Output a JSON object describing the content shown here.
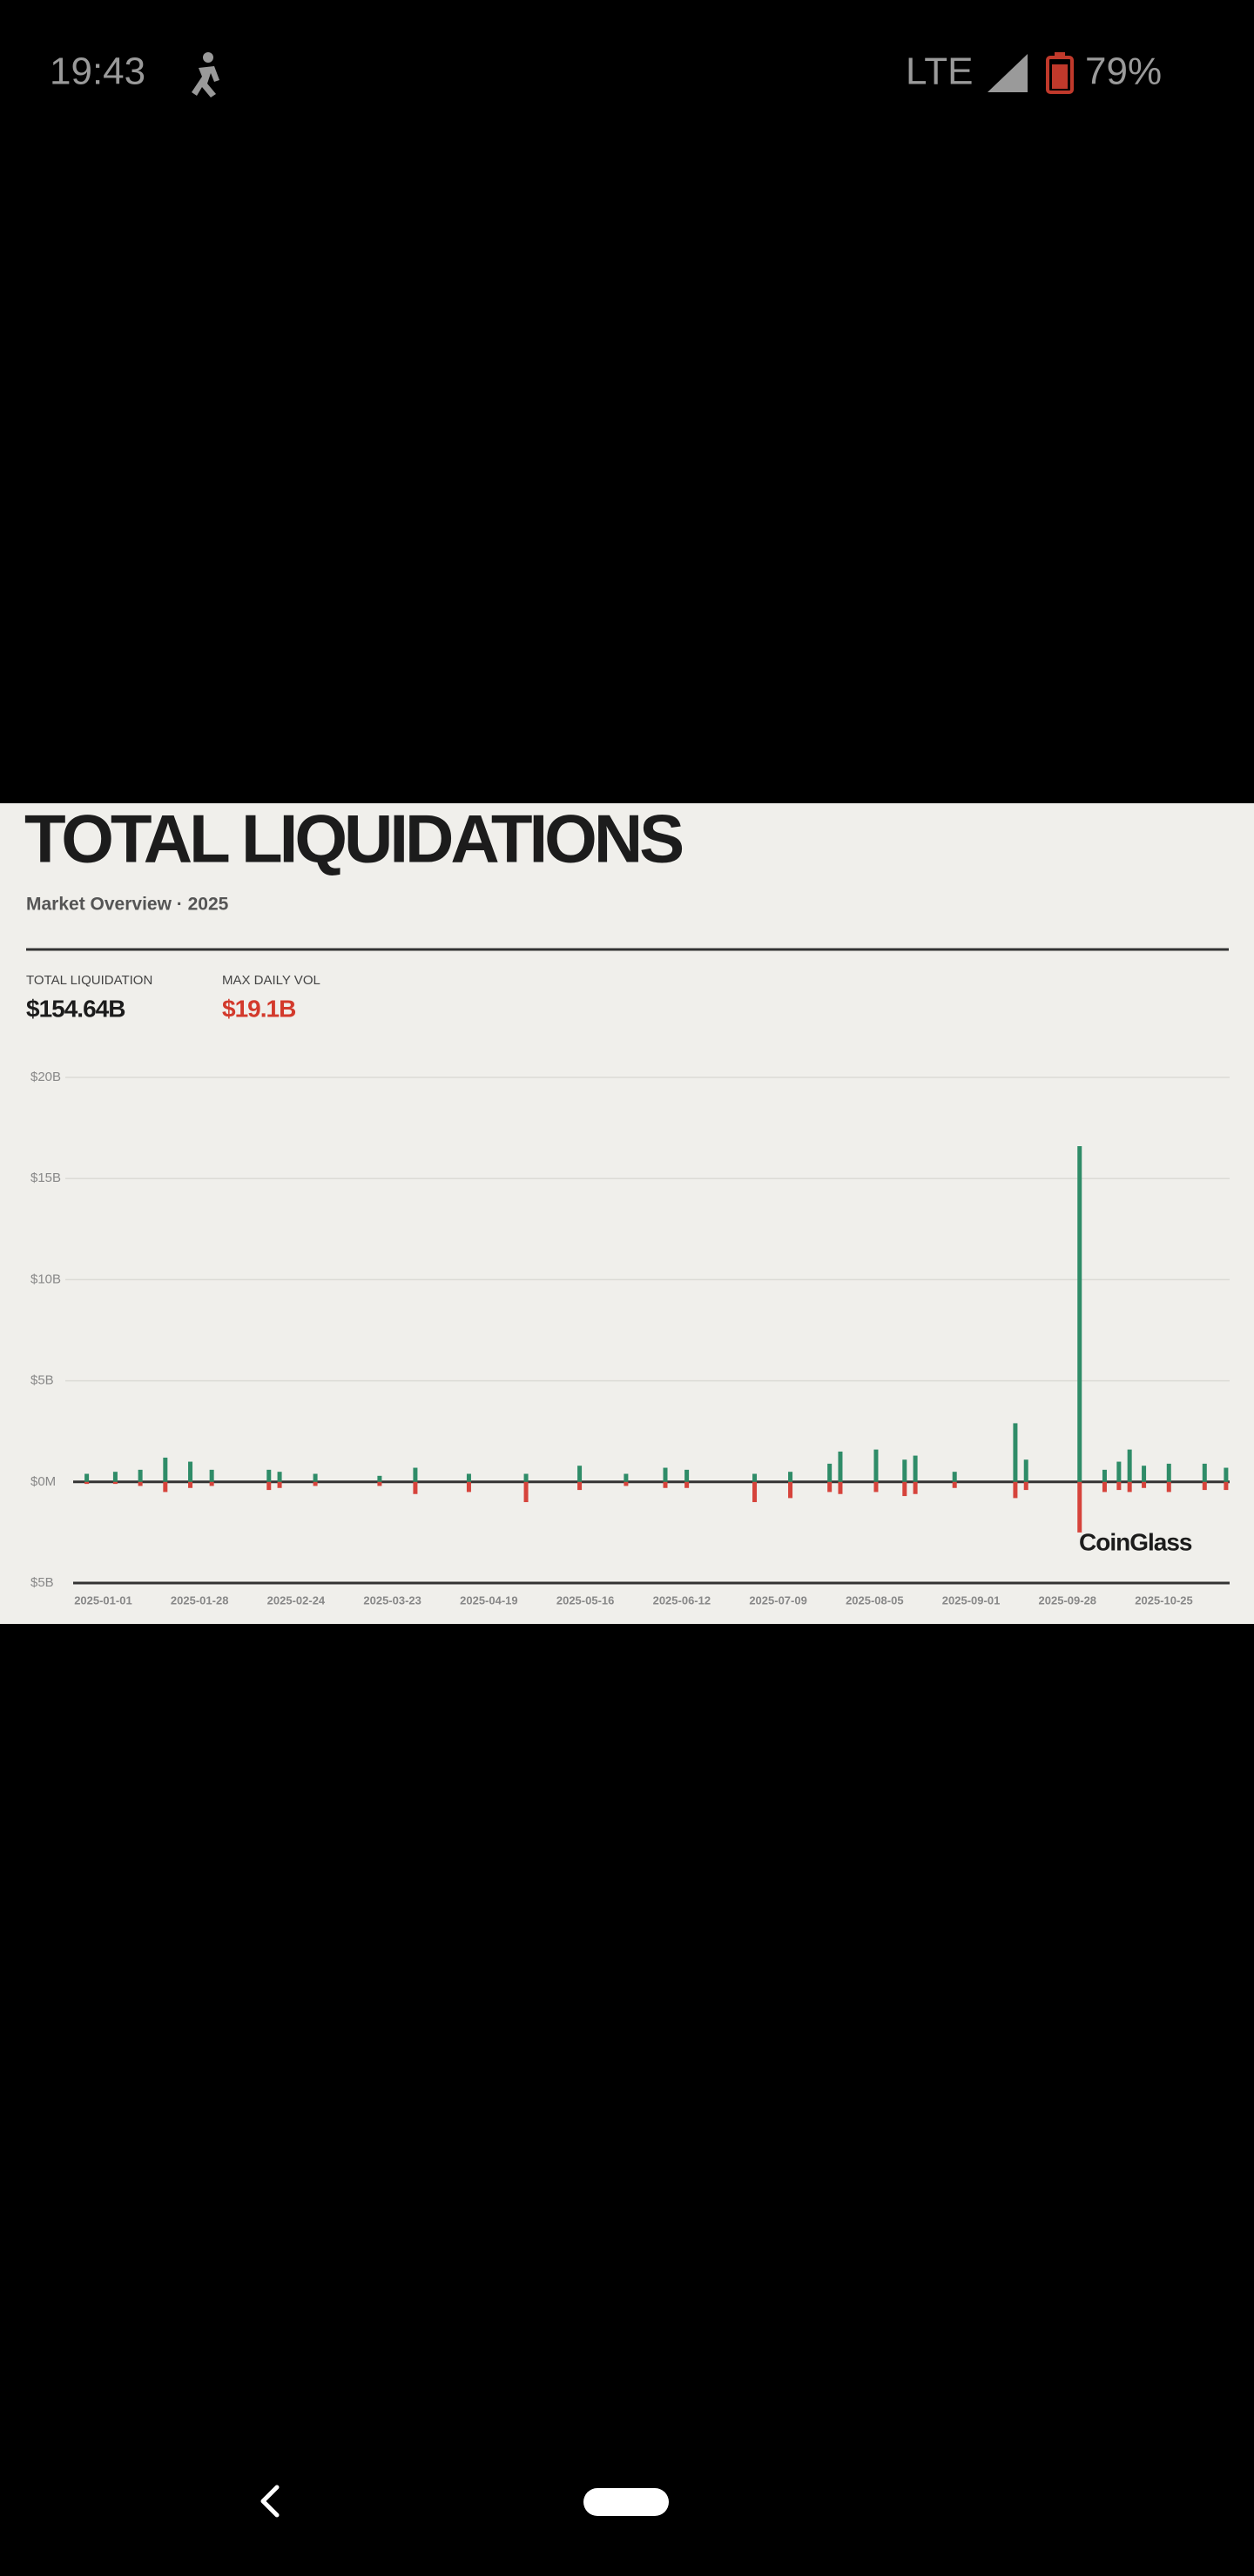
{
  "status_bar": {
    "time": "19:43",
    "network": "LTE",
    "battery": "79%"
  },
  "header": {
    "title": "TOTAL LIQUIDATIONS",
    "subtitle": "Market Overview · 2025"
  },
  "stats": [
    {
      "label": "TOTAL LIQUIDATION",
      "value": "$154.64B"
    },
    {
      "label": "MAX DAILY VOL",
      "value": "$19.1B"
    }
  ],
  "watermark": "CoinGlass",
  "chart_data": {
    "type": "bar",
    "x": [
      "2025-01-05",
      "2025-01-13",
      "2025-01-20",
      "2025-01-27",
      "2025-02-03",
      "2025-02-09",
      "2025-02-25",
      "2025-02-28",
      "2025-03-10",
      "2025-03-28",
      "2025-04-07",
      "2025-04-22",
      "2025-05-08",
      "2025-05-23",
      "2025-06-05",
      "2025-06-16",
      "2025-06-22",
      "2025-07-11",
      "2025-07-21",
      "2025-08-01",
      "2025-08-04",
      "2025-08-14",
      "2025-08-22",
      "2025-08-25",
      "2025-09-05",
      "2025-09-22",
      "2025-09-25",
      "2025-10-10",
      "2025-10-17",
      "2025-10-21",
      "2025-10-24",
      "2025-10-28",
      "2025-11-04",
      "2025-11-14",
      "2025-11-20"
    ],
    "series": [
      {
        "color": "#2f8c68",
        "values": [
          0.4,
          0.5,
          0.6,
          1.2,
          1.0,
          0.6,
          0.6,
          0.5,
          0.4,
          0.3,
          0.7,
          0.4,
          0.4,
          0.8,
          0.4,
          0.7,
          0.6,
          0.4,
          0.5,
          0.9,
          1.5,
          1.6,
          1.1,
          1.3,
          0.5,
          2.9,
          1.1,
          16.6,
          0.6,
          1.0,
          1.6,
          0.8,
          0.9,
          0.9,
          0.7
        ]
      },
      {
        "color": "#d6433b",
        "values": [
          -0.1,
          -0.1,
          -0.2,
          -0.5,
          -0.3,
          -0.2,
          -0.4,
          -0.3,
          -0.2,
          -0.2,
          -0.6,
          -0.5,
          -1.0,
          -0.4,
          -0.2,
          -0.3,
          -0.3,
          -1.0,
          -0.8,
          -0.5,
          -0.6,
          -0.5,
          -0.7,
          -0.6,
          -0.3,
          -0.8,
          -0.4,
          -2.5,
          -0.5,
          -0.4,
          -0.5,
          -0.3,
          -0.5,
          -0.4,
          -0.4
        ]
      }
    ],
    "xlim": [
      "2024-12-30",
      "2025-11-21"
    ],
    "xticks": [
      "2025-01-01",
      "2025-01-28",
      "2025-02-24",
      "2025-03-23",
      "2025-04-19",
      "2025-05-16",
      "2025-06-12",
      "2025-07-09",
      "2025-08-05",
      "2025-09-01",
      "2025-09-28",
      "2025-10-25"
    ],
    "ylim": [
      -5,
      20
    ],
    "yticks": [
      {
        "value": -5,
        "label": "$5B"
      },
      {
        "value": 0,
        "label": "$0M"
      },
      {
        "value": 5,
        "label": "$5B"
      },
      {
        "value": 10,
        "label": "$10B"
      },
      {
        "value": 15,
        "label": "$15B"
      },
      {
        "value": 20,
        "label": "$20B"
      }
    ],
    "grid": true
  }
}
